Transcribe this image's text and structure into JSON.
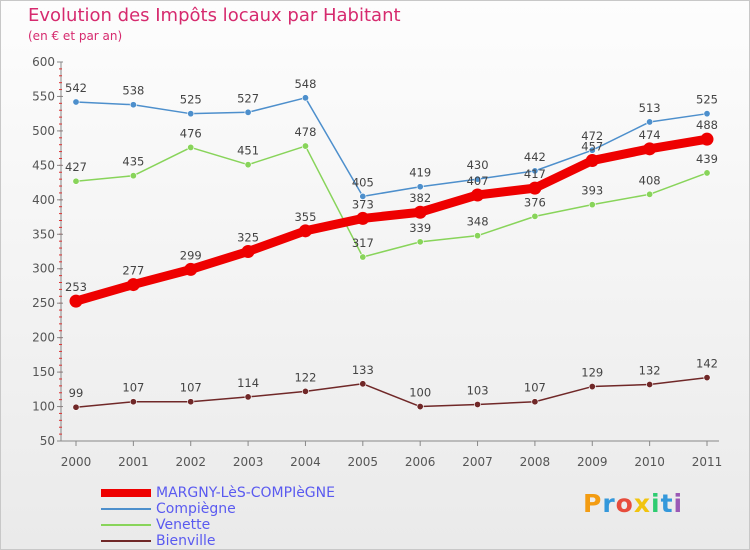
{
  "chart_data": {
    "type": "line",
    "title": "Evolution des Impôts locaux par Habitant",
    "subtitle": "(en € et par an)",
    "xlabel": "",
    "ylabel": "",
    "x": [
      "2000",
      "2001",
      "2002",
      "2003",
      "2004",
      "2005",
      "2006",
      "2007",
      "2008",
      "2009",
      "2010",
      "2011"
    ],
    "ylim": [
      50,
      600
    ],
    "yticks": [
      50,
      100,
      150,
      200,
      250,
      300,
      350,
      400,
      450,
      500,
      550,
      600
    ],
    "grid": false,
    "legend_position": "bottom-left",
    "series": [
      {
        "name": "MARGNY-LèS-COMPIèGNE",
        "color": "#ee0000",
        "emphasis": true,
        "values": [
          253,
          277,
          299,
          325,
          355,
          373,
          382,
          407,
          417,
          457,
          474,
          488
        ],
        "labels": [
          "253",
          "277",
          "299",
          "325",
          "355",
          "373",
          "382",
          "407",
          "417",
          "457",
          "474",
          "488"
        ]
      },
      {
        "name": "Compiègne",
        "color": "#4d8fcc",
        "emphasis": false,
        "values": [
          542,
          538,
          525,
          527,
          548,
          405,
          419,
          430,
          442,
          472,
          513,
          525
        ],
        "labels": [
          "542",
          "538",
          "525",
          "527",
          "548",
          "405",
          "419",
          "430",
          "442",
          "472",
          "513",
          "525"
        ]
      },
      {
        "name": "Venette",
        "color": "#88d45a",
        "emphasis": false,
        "values": [
          427,
          435,
          476,
          451,
          478,
          317,
          339,
          348,
          376,
          393,
          408,
          439
        ],
        "labels": [
          "427",
          "435",
          "476",
          "451",
          "478",
          "317",
          "339",
          "348",
          "376",
          "393",
          "408",
          "439"
        ]
      },
      {
        "name": "Bienville",
        "color": "#702828",
        "emphasis": false,
        "values": [
          99,
          107,
          107,
          114,
          122,
          133,
          100,
          103,
          107,
          129,
          132,
          142
        ],
        "labels": [
          "99",
          "107",
          "107",
          "114",
          "122",
          "133",
          "100",
          "103",
          "107",
          "129",
          "132",
          "142"
        ]
      }
    ]
  },
  "brand": {
    "letters": [
      "P",
      "r",
      "o",
      "x",
      "i",
      "t",
      "i"
    ],
    "colors": [
      "#f39c12",
      "#3498db",
      "#e74c3c",
      "#f1c40f",
      "#2ecc71",
      "#3498db",
      "#9b59b6"
    ]
  }
}
